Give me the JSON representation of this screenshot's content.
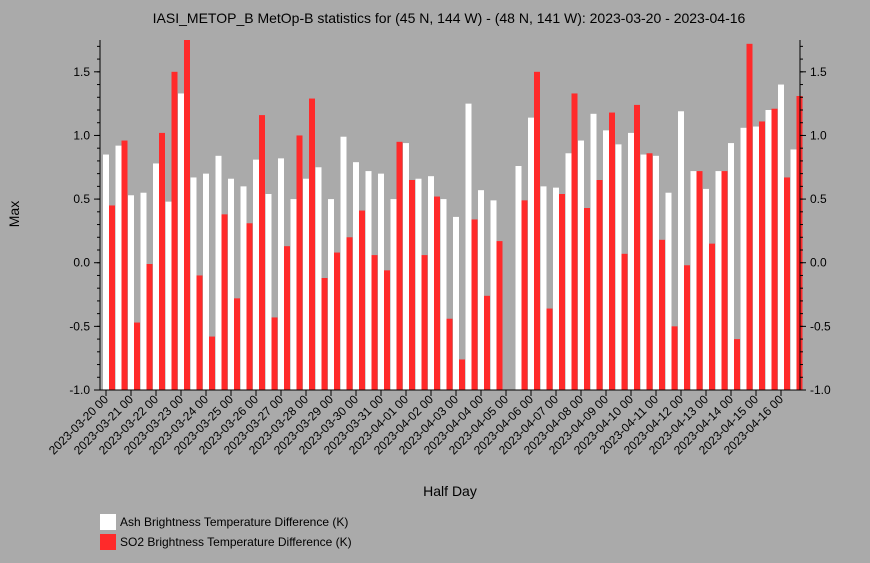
{
  "chart_data": {
    "type": "bar",
    "title": "IASI_METOP_B MetOp-B statistics for (45 N, 144 W) - (48 N, 141 W): 2023-03-20 - 2023-04-16",
    "xlabel": "Half Day",
    "ylabel": "Max",
    "ylim": [
      -1.0,
      1.75
    ],
    "yticks": [
      "-1.0",
      "-0.5",
      "0.0",
      "0.5",
      "1.0",
      "1.5"
    ],
    "grid": false,
    "legend_position": "bottom-left",
    "categories": [
      "2023-03-20 00",
      "2023-03-20 12",
      "2023-03-21 00",
      "2023-03-21 12",
      "2023-03-22 00",
      "2023-03-22 12",
      "2023-03-23 00",
      "2023-03-23 12",
      "2023-03-24 00",
      "2023-03-24 12",
      "2023-03-25 00",
      "2023-03-25 12",
      "2023-03-26 00",
      "2023-03-26 12",
      "2023-03-27 00",
      "2023-03-27 12",
      "2023-03-28 00",
      "2023-03-28 12",
      "2023-03-29 00",
      "2023-03-29 12",
      "2023-03-30 00",
      "2023-03-30 12",
      "2023-03-31 00",
      "2023-03-31 12",
      "2023-04-01 00",
      "2023-04-01 12",
      "2023-04-02 00",
      "2023-04-02 12",
      "2023-04-03 00",
      "2023-04-03 12",
      "2023-04-04 00",
      "2023-04-04 12",
      "2023-04-05 00",
      "2023-04-05 12",
      "2023-04-06 00",
      "2023-04-06 12",
      "2023-04-07 00",
      "2023-04-07 12",
      "2023-04-08 00",
      "2023-04-08 12",
      "2023-04-09 00",
      "2023-04-09 12",
      "2023-04-10 00",
      "2023-04-10 12",
      "2023-04-11 00",
      "2023-04-11 12",
      "2023-04-12 00",
      "2023-04-12 12",
      "2023-04-13 00",
      "2023-04-13 12",
      "2023-04-14 00",
      "2023-04-14 12",
      "2023-04-15 00",
      "2023-04-15 12",
      "2023-04-16 00",
      "2023-04-16 12"
    ],
    "xtick_labels": [
      "2023-03-20 00",
      "2023-03-21 00",
      "2023-03-22 00",
      "2023-03-23 00",
      "2023-03-24 00",
      "2023-03-25 00",
      "2023-03-26 00",
      "2023-03-27 00",
      "2023-03-28 00",
      "2023-03-29 00",
      "2023-03-30 00",
      "2023-03-31 00",
      "2023-04-01 00",
      "2023-04-02 00",
      "2023-04-03 00",
      "2023-04-04 00",
      "2023-04-05 00",
      "2023-04-06 00",
      "2023-04-07 00",
      "2023-04-08 00",
      "2023-04-09 00",
      "2023-04-10 00",
      "2023-04-11 00",
      "2023-04-12 00",
      "2023-04-13 00",
      "2023-04-14 00",
      "2023-04-15 00",
      "2023-04-16 00"
    ],
    "series": [
      {
        "name": "Ash Brightness Temperature Difference (K)",
        "color": "#ffffff",
        "values": [
          0.85,
          0.92,
          0.53,
          0.55,
          0.78,
          0.48,
          1.33,
          0.67,
          0.7,
          0.84,
          0.66,
          0.6,
          0.81,
          0.54,
          0.82,
          0.5,
          0.66,
          0.75,
          0.5,
          0.99,
          0.79,
          0.72,
          0.7,
          0.5,
          0.94,
          0.66,
          0.68,
          0.5,
          0.36,
          1.25,
          0.57,
          0.49,
          null,
          0.76,
          1.14,
          0.6,
          0.59,
          0.86,
          0.96,
          1.17,
          1.04,
          0.93,
          1.02,
          0.85,
          0.84,
          0.55,
          1.19,
          0.72,
          0.58,
          0.72,
          0.94,
          1.06,
          1.07,
          1.2,
          1.4,
          0.89
        ]
      },
      {
        "name": "SO2 Brightness Temperature Difference (K)",
        "color": "#ff2a2a",
        "values": [
          0.45,
          0.96,
          -0.47,
          -0.01,
          1.02,
          1.5,
          1.75,
          -0.1,
          -0.58,
          0.38,
          -0.28,
          0.31,
          1.16,
          -0.43,
          0.13,
          1.0,
          1.29,
          -0.12,
          0.08,
          0.2,
          0.41,
          0.06,
          -0.06,
          0.95,
          0.65,
          0.06,
          0.52,
          -0.44,
          -0.76,
          0.34,
          -0.26,
          0.17,
          null,
          0.49,
          1.5,
          -0.36,
          0.54,
          1.33,
          0.43,
          0.65,
          1.18,
          0.07,
          1.24,
          0.86,
          0.18,
          -0.5,
          -0.02,
          0.72,
          0.15,
          0.72,
          -0.6,
          1.72,
          1.11,
          1.21,
          0.67,
          1.31
        ]
      }
    ]
  }
}
